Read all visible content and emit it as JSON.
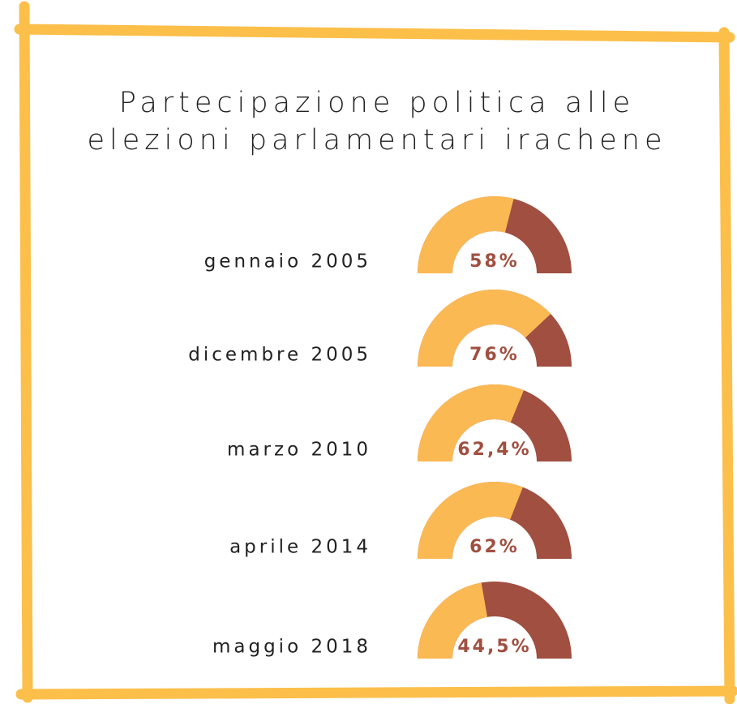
{
  "chart_data": {
    "type": "gauge",
    "title": "Partecipazione politica alle elezioni parlamentari irachene",
    "categories": [
      "gennaio 2005",
      "dicembre 2005",
      "marzo 2010",
      "aprile 2014",
      "maggio 2018"
    ],
    "values": [
      58,
      76,
      62.4,
      62,
      44.5
    ],
    "value_labels": [
      "58%",
      "76%",
      "62,4%",
      "62%",
      "44,5%"
    ],
    "ylim": [
      0,
      100
    ],
    "color": "#fbb954",
    "rest_color": "#a04f40"
  }
}
